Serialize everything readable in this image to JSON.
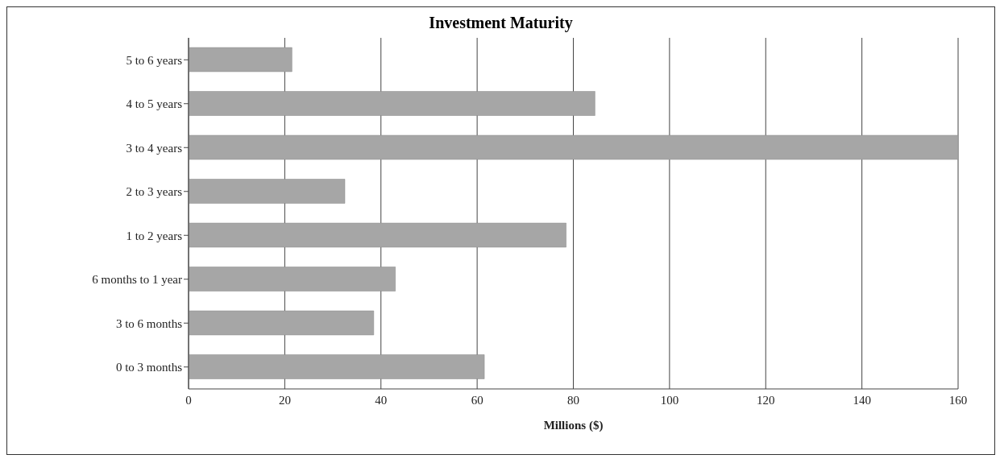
{
  "chart_data": {
    "type": "bar",
    "orientation": "horizontal",
    "title": "Investment Maturity",
    "xlabel": "Millions ($)",
    "categories": [
      "5 to 6 years",
      "4 to 5 years",
      "3 to 4 years",
      "2 to 3 years",
      "1 to 2 years",
      "6 months to 1 year",
      "3 to 6 months",
      "0 to 3 months"
    ],
    "values": [
      21.5,
      84.5,
      160,
      32.5,
      78.5,
      43,
      38.5,
      61.5
    ],
    "color": "#a6a6a6",
    "xlim": [
      0,
      160
    ],
    "xticks": [
      0,
      20,
      40,
      60,
      80,
      100,
      120,
      140,
      160
    ],
    "grid": "x"
  }
}
